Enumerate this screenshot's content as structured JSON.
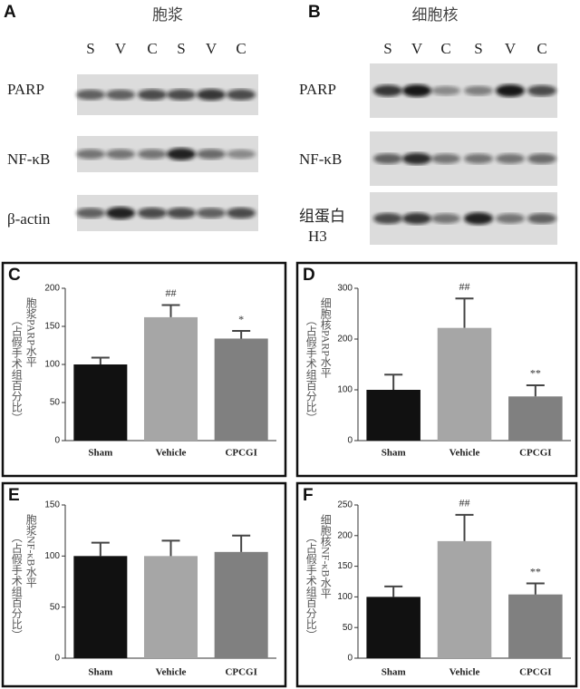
{
  "blots": {
    "A": {
      "panel": "A",
      "title": "胞浆",
      "lanes": [
        "S",
        "V",
        "C",
        "S",
        "V",
        "C"
      ],
      "rows": [
        "PARP",
        "NF-κB",
        "β-actin"
      ]
    },
    "B": {
      "panel": "B",
      "title": "细胞核",
      "lanes": [
        "S",
        "V",
        "C",
        "S",
        "V",
        "C"
      ],
      "rows": [
        "PARP",
        "NF-κB",
        "组蛋白",
        "H3"
      ]
    }
  },
  "chart_data": [
    {
      "type": "bar",
      "panel": "C",
      "ylabel": "胞浆PARP水平",
      "ylabel_note": "（占假手术组百分比）",
      "categories": [
        "Sham",
        "Vehicle",
        "CPCGI"
      ],
      "values": [
        100,
        162,
        134
      ],
      "errors": [
        9,
        16,
        10
      ],
      "annotations": [
        null,
        "##",
        "*"
      ],
      "colors": [
        "#111111",
        "#a6a6a6",
        "#808080"
      ],
      "ylim": [
        0,
        200
      ],
      "yticks": [
        0,
        50,
        100,
        150,
        200
      ]
    },
    {
      "type": "bar",
      "panel": "D",
      "ylabel": "细胞核PARP水平",
      "ylabel_note": "（占假手术组百分比）",
      "categories": [
        "Sham",
        "Vehicle",
        "CPCGI"
      ],
      "values": [
        100,
        222,
        87
      ],
      "errors": [
        30,
        58,
        22
      ],
      "annotations": [
        null,
        "##",
        "**"
      ],
      "colors": [
        "#111111",
        "#a6a6a6",
        "#808080"
      ],
      "ylim": [
        0,
        300
      ],
      "yticks": [
        0,
        100,
        200,
        300
      ]
    },
    {
      "type": "bar",
      "panel": "E",
      "ylabel": "胞浆NF-κB水平",
      "ylabel_note": "（占假手术组百分比）",
      "categories": [
        "Sham",
        "Vehicle",
        "CPCGI"
      ],
      "values": [
        100,
        100,
        104
      ],
      "errors": [
        13,
        15,
        16
      ],
      "colors": [
        "#111111",
        "#a6a6a6",
        "#808080"
      ],
      "ylim": [
        0,
        150
      ],
      "yticks": [
        0,
        50,
        100,
        150
      ]
    },
    {
      "type": "bar",
      "panel": "F",
      "ylabel": "细胞核NF-κB水平",
      "ylabel_note": "（占假手术组百分比）",
      "categories": [
        "Sham",
        "Vehicle",
        "CPCGI"
      ],
      "values": [
        100,
        191,
        104
      ],
      "errors": [
        17,
        43,
        18
      ],
      "annotations": [
        null,
        "##",
        "**"
      ],
      "colors": [
        "#111111",
        "#a6a6a6",
        "#808080"
      ],
      "ylim": [
        0,
        250
      ],
      "yticks": [
        0,
        50,
        100,
        150,
        200,
        250
      ]
    }
  ]
}
